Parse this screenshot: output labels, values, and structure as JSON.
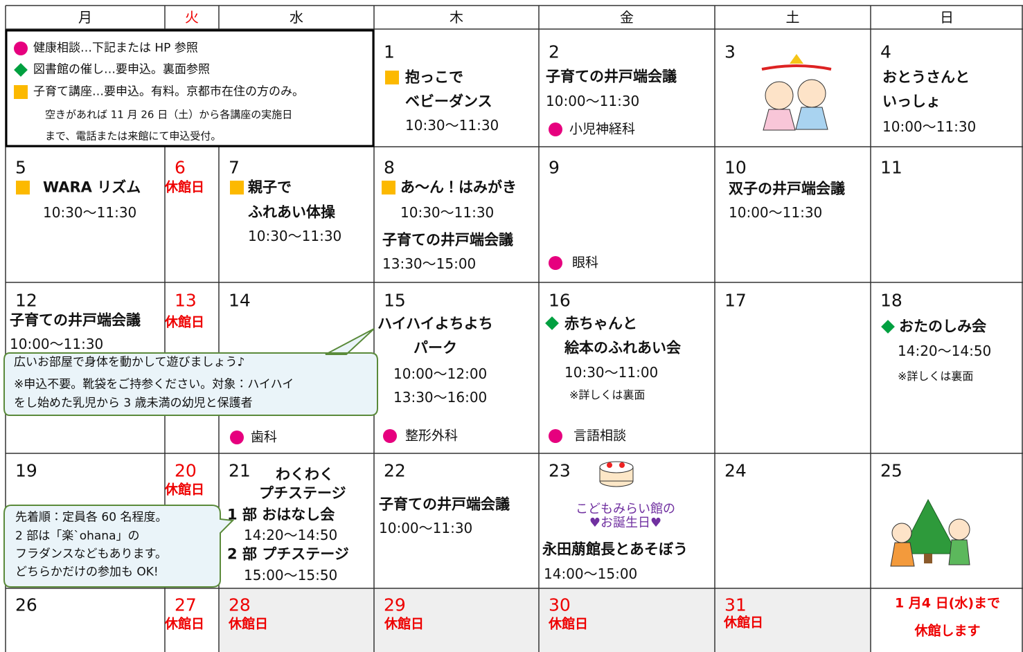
{
  "header": {
    "days": [
      "月",
      "火",
      "水",
      "木",
      "金",
      "土",
      "日"
    ]
  },
  "legend": [
    "健康相談…下記または HP 参照",
    "図書館の催し…要申込。裏面参照",
    "子育て講座…要申込。有料。京都市在住の方のみ。",
    "空きがあれば 11 月 26 日（土）から各講座の実施日",
    "まで、電話または来館にて申込受付。"
  ],
  "cells": [
    {
      "day": "1",
      "lines": [
        "抱っこで",
        "ベビーダンス",
        "10:30〜11:30"
      ]
    },
    {
      "day": "2",
      "lines": [
        "子育ての井戸端会議",
        "10:00〜11:30",
        "小児神経科"
      ]
    },
    {
      "day": "3"
    },
    {
      "day": "4",
      "lines": [
        "おとうさんと",
        "いっしょ",
        "10:00〜11:30"
      ]
    },
    {
      "day": "5",
      "lines": [
        "WARA リズム",
        "10:30〜11:30"
      ]
    },
    {
      "day": "6",
      "lines": [
        "休館日"
      ]
    },
    {
      "day": "7",
      "lines": [
        "親子で",
        "ふれあい体操",
        "10:30〜11:30"
      ]
    },
    {
      "day": "8",
      "lines": [
        "あ〜ん！はみがき",
        "10:30〜11:30",
        "子育ての井戸端会議",
        "13:30〜15:00"
      ]
    },
    {
      "day": "9",
      "lines": [
        "眼科"
      ]
    },
    {
      "day": "10",
      "lines": [
        "双子の井戸端会議",
        "10:00〜11:30"
      ]
    },
    {
      "day": "11"
    },
    {
      "day": "12",
      "lines": [
        "子育ての井戸端会議",
        "10:00〜11:30"
      ]
    },
    {
      "day": "13",
      "lines": [
        "休館日"
      ]
    },
    {
      "day": "14",
      "lines": [
        "歯科"
      ]
    },
    {
      "day": "15",
      "lines": [
        "ハイハイよちよち",
        "パーク",
        "10:00〜12:00",
        "13:30〜16:00",
        "整形外科"
      ]
    },
    {
      "day": "16",
      "lines": [
        "赤ちゃんと",
        "絵本のふれあい会",
        "10:30〜11:00",
        "※詳しくは裏面",
        "言語相談"
      ]
    },
    {
      "day": "17"
    },
    {
      "day": "18",
      "lines": [
        "おたのしみ会",
        "14:20〜14:50",
        "※詳しくは裏面"
      ]
    },
    {
      "day": "19"
    },
    {
      "day": "20",
      "lines": [
        "休館日"
      ]
    },
    {
      "day": "21",
      "lines": [
        "わくわく",
        "プチステージ",
        "1 部 おはなし会",
        "14:20〜14:50",
        "2 部 プチステージ",
        "15:00〜15:50"
      ]
    },
    {
      "day": "22",
      "lines": [
        "子育ての井戸端会議",
        "10:00〜11:30"
      ]
    },
    {
      "day": "23",
      "lines": [
        "こどもみらい館の",
        "♥お誕生日♥",
        "永田萠館長とあそぼう",
        "14:00〜15:00"
      ]
    },
    {
      "day": "24"
    },
    {
      "day": "25"
    },
    {
      "day": "26"
    },
    {
      "day": "27",
      "lines": [
        "休館日"
      ]
    },
    {
      "day": "28",
      "lines": [
        "休館日"
      ]
    },
    {
      "day": "29",
      "lines": [
        "休館日"
      ]
    },
    {
      "day": "30",
      "lines": [
        "休館日"
      ]
    },
    {
      "day": "31",
      "lines": [
        "休館日"
      ]
    }
  ],
  "closing_note": [
    "1 月4 日(水)まで",
    "休館します"
  ],
  "callouts": [
    [
      "広いお部屋で身体を動かして遊びましょう♪",
      "※申込不要。靴袋をご持参ください。対象：ハイハイ",
      "をし始めた乳児から 3 歳未満の幼児と保護者"
    ],
    [
      "先着順：定員各 60 名程度。",
      "2 部は「楽`ohana」の",
      "フラダンスなどもあります。",
      "どちらかだけの参加も OK!"
    ]
  ]
}
